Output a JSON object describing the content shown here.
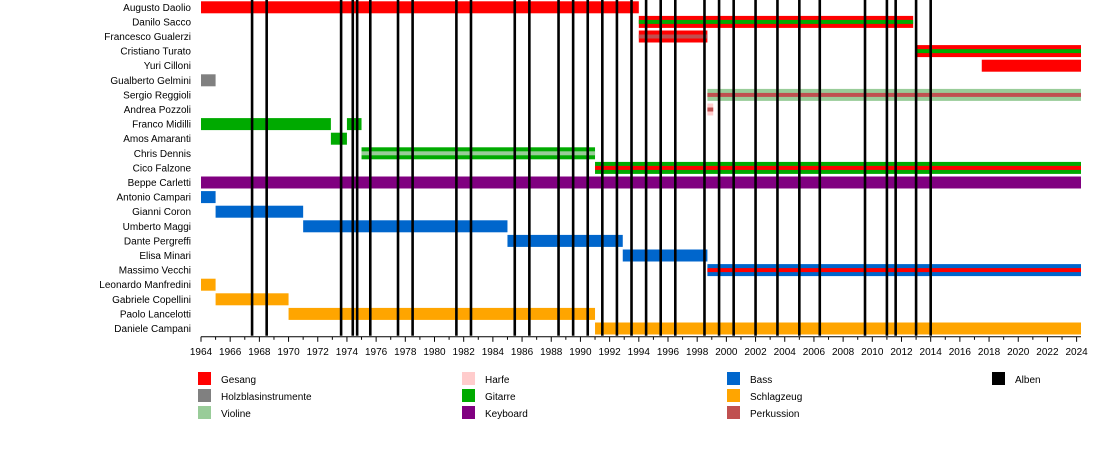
{
  "chart_data": {
    "type": "timeline",
    "x_range": [
      1964,
      2024.3
    ],
    "x_ticks": [
      "1964",
      "1966",
      "1968",
      "1970",
      "1972",
      "1974",
      "1976",
      "1978",
      "1980",
      "1982",
      "1984",
      "1986",
      "1988",
      "1990",
      "1992",
      "1994",
      "1996",
      "1998",
      "2000",
      "2002",
      "2004",
      "2006",
      "2008",
      "2010",
      "2012",
      "2014",
      "2016",
      "2018",
      "2020",
      "2022",
      "2024"
    ],
    "colors": {
      "Gesang": "#ff0000",
      "Holzblasinstrumente": "#808080",
      "Violine": "#99cc99",
      "Harfe": "#ffcccc",
      "Gitarre": "#00aa00",
      "Keyboard": "#800080",
      "Bass": "#0066cc",
      "Schlagzeug": "#ffa500",
      "Perkussion": "#c05050",
      "Alben": "#000000"
    },
    "members": [
      {
        "name": "Augusto Daolio",
        "bars": [
          {
            "start": 1964,
            "end": 1994,
            "roles": [
              "Gesang"
            ]
          }
        ]
      },
      {
        "name": "Danilo Sacco",
        "bars": [
          {
            "start": 1994,
            "end": 2012.8,
            "roles": [
              "Gesang",
              "Gitarre"
            ]
          }
        ]
      },
      {
        "name": "Francesco Gualerzi",
        "bars": [
          {
            "start": 1994,
            "end": 1998.7,
            "roles": [
              "Gesang",
              "Perkussion"
            ]
          }
        ]
      },
      {
        "name": "Cristiano Turato",
        "bars": [
          {
            "start": 2013,
            "end": 2024.3,
            "roles": [
              "Gesang",
              "Gitarre"
            ]
          }
        ]
      },
      {
        "name": "Yuri Cilloni",
        "bars": [
          {
            "start": 2017.5,
            "end": 2024.3,
            "roles": [
              "Gesang"
            ]
          }
        ]
      },
      {
        "name": "Gualberto Gelmini",
        "bars": [
          {
            "start": 1964,
            "end": 1965,
            "roles": [
              "Holzblasinstrumente"
            ]
          }
        ]
      },
      {
        "name": "Sergio Reggioli",
        "bars": [
          {
            "start": 1998.7,
            "end": 2024.3,
            "roles": [
              "Violine",
              "Perkussion"
            ]
          }
        ]
      },
      {
        "name": "Andrea Pozzoli",
        "bars": [
          {
            "start": 1998.7,
            "end": 1999.1,
            "roles": [
              "Harfe",
              "Perkussion"
            ]
          }
        ]
      },
      {
        "name": "Franco Midilli",
        "bars": [
          {
            "start": 1964,
            "end": 1972.9,
            "roles": [
              "Gitarre"
            ]
          },
          {
            "start": 1974,
            "end": 1975,
            "roles": [
              "Gitarre"
            ]
          }
        ]
      },
      {
        "name": "Amos Amaranti",
        "bars": [
          {
            "start": 1972.9,
            "end": 1974,
            "roles": [
              "Gitarre"
            ]
          }
        ]
      },
      {
        "name": "Chris Dennis",
        "bars": [
          {
            "start": 1975,
            "end": 1991,
            "roles": [
              "Gitarre",
              "Violine"
            ]
          }
        ]
      },
      {
        "name": "Cico Falzone",
        "bars": [
          {
            "start": 1991,
            "end": 2024.3,
            "roles": [
              "Gitarre",
              "Gesang"
            ]
          }
        ]
      },
      {
        "name": "Beppe Carletti",
        "bars": [
          {
            "start": 1964,
            "end": 2024.3,
            "roles": [
              "Keyboard"
            ]
          }
        ]
      },
      {
        "name": "Antonio Campari",
        "bars": [
          {
            "start": 1964,
            "end": 1965,
            "roles": [
              "Bass"
            ]
          }
        ]
      },
      {
        "name": "Gianni Coron",
        "bars": [
          {
            "start": 1965,
            "end": 1971,
            "roles": [
              "Bass"
            ]
          }
        ]
      },
      {
        "name": "Umberto Maggi",
        "bars": [
          {
            "start": 1971,
            "end": 1985,
            "roles": [
              "Bass"
            ]
          }
        ]
      },
      {
        "name": "Dante Pergreffi",
        "bars": [
          {
            "start": 1985,
            "end": 1992.9,
            "roles": [
              "Bass"
            ]
          }
        ]
      },
      {
        "name": "Elisa Minari",
        "bars": [
          {
            "start": 1992.9,
            "end": 1998.7,
            "roles": [
              "Bass"
            ]
          }
        ]
      },
      {
        "name": "Massimo Vecchi",
        "bars": [
          {
            "start": 1998.7,
            "end": 2024.3,
            "roles": [
              "Bass",
              "Gesang"
            ]
          }
        ]
      },
      {
        "name": "Leonardo Manfredini",
        "bars": [
          {
            "start": 1964,
            "end": 1965,
            "roles": [
              "Schlagzeug"
            ]
          }
        ]
      },
      {
        "name": "Gabriele Copellini",
        "bars": [
          {
            "start": 1965,
            "end": 1970,
            "roles": [
              "Schlagzeug"
            ]
          }
        ]
      },
      {
        "name": "Paolo Lancelotti",
        "bars": [
          {
            "start": 1970,
            "end": 1991,
            "roles": [
              "Schlagzeug"
            ]
          }
        ]
      },
      {
        "name": "Daniele Campani",
        "bars": [
          {
            "start": 1991,
            "end": 2024.3,
            "roles": [
              "Schlagzeug"
            ]
          }
        ]
      }
    ],
    "albums": [
      1967.5,
      1968.5,
      1973.6,
      1974.4,
      1974.7,
      1975.6,
      1977.5,
      1978.5,
      1981.5,
      1982.5,
      1985.5,
      1986.5,
      1988.5,
      1989.5,
      1990.5,
      1991.5,
      1992.5,
      1993.5,
      1994.5,
      1995.5,
      1996.5,
      1998.5,
      1999.5,
      2000.5,
      2002,
      2003.5,
      2005,
      2006.4,
      2009.5,
      2011,
      2011.6,
      2013,
      2014
    ]
  },
  "legend": [
    {
      "label": "Gesang",
      "color": "#ff0000"
    },
    {
      "label": "Holzblasinstrumente",
      "color": "#808080"
    },
    {
      "label": "Violine",
      "color": "#99cc99"
    },
    {
      "label": "Harfe",
      "color": "#ffcccc"
    },
    {
      "label": "Gitarre",
      "color": "#00aa00"
    },
    {
      "label": "Keyboard",
      "color": "#800080"
    },
    {
      "label": "Bass",
      "color": "#0066cc"
    },
    {
      "label": "Schlagzeug",
      "color": "#ffa500"
    },
    {
      "label": "Perkussion",
      "color": "#c05050"
    },
    {
      "label": "Alben",
      "color": "#000000"
    }
  ]
}
